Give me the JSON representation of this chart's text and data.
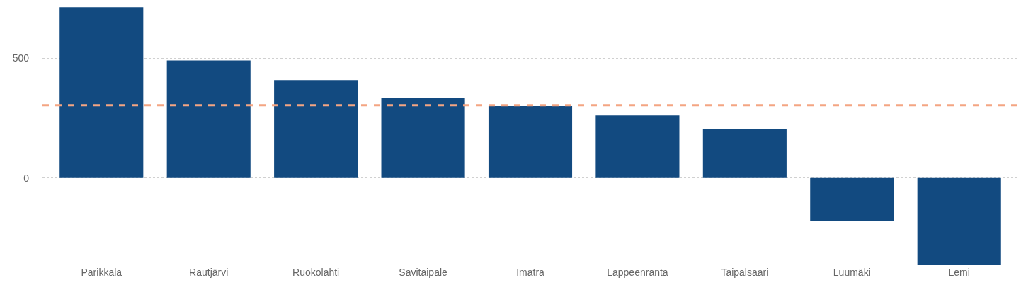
{
  "chart_data": {
    "type": "bar",
    "categories": [
      "Parikkala",
      "Rautjärvi",
      "Ruokolahti",
      "Savitaipale",
      "Imatra",
      "Lappeenranta",
      "Taipalsaari",
      "Luumäki",
      "Lemi"
    ],
    "values": [
      712,
      490,
      408,
      334,
      300,
      261,
      206,
      -179,
      -363
    ],
    "color": "#124a80",
    "ylim": [
      -363,
      742
    ],
    "yticks": [
      0,
      500
    ],
    "grid": "y",
    "ref_lines": [
      {
        "axis": "y",
        "value": 304,
        "color": "#f4a582",
        "line_style": "dashed"
      }
    ]
  }
}
